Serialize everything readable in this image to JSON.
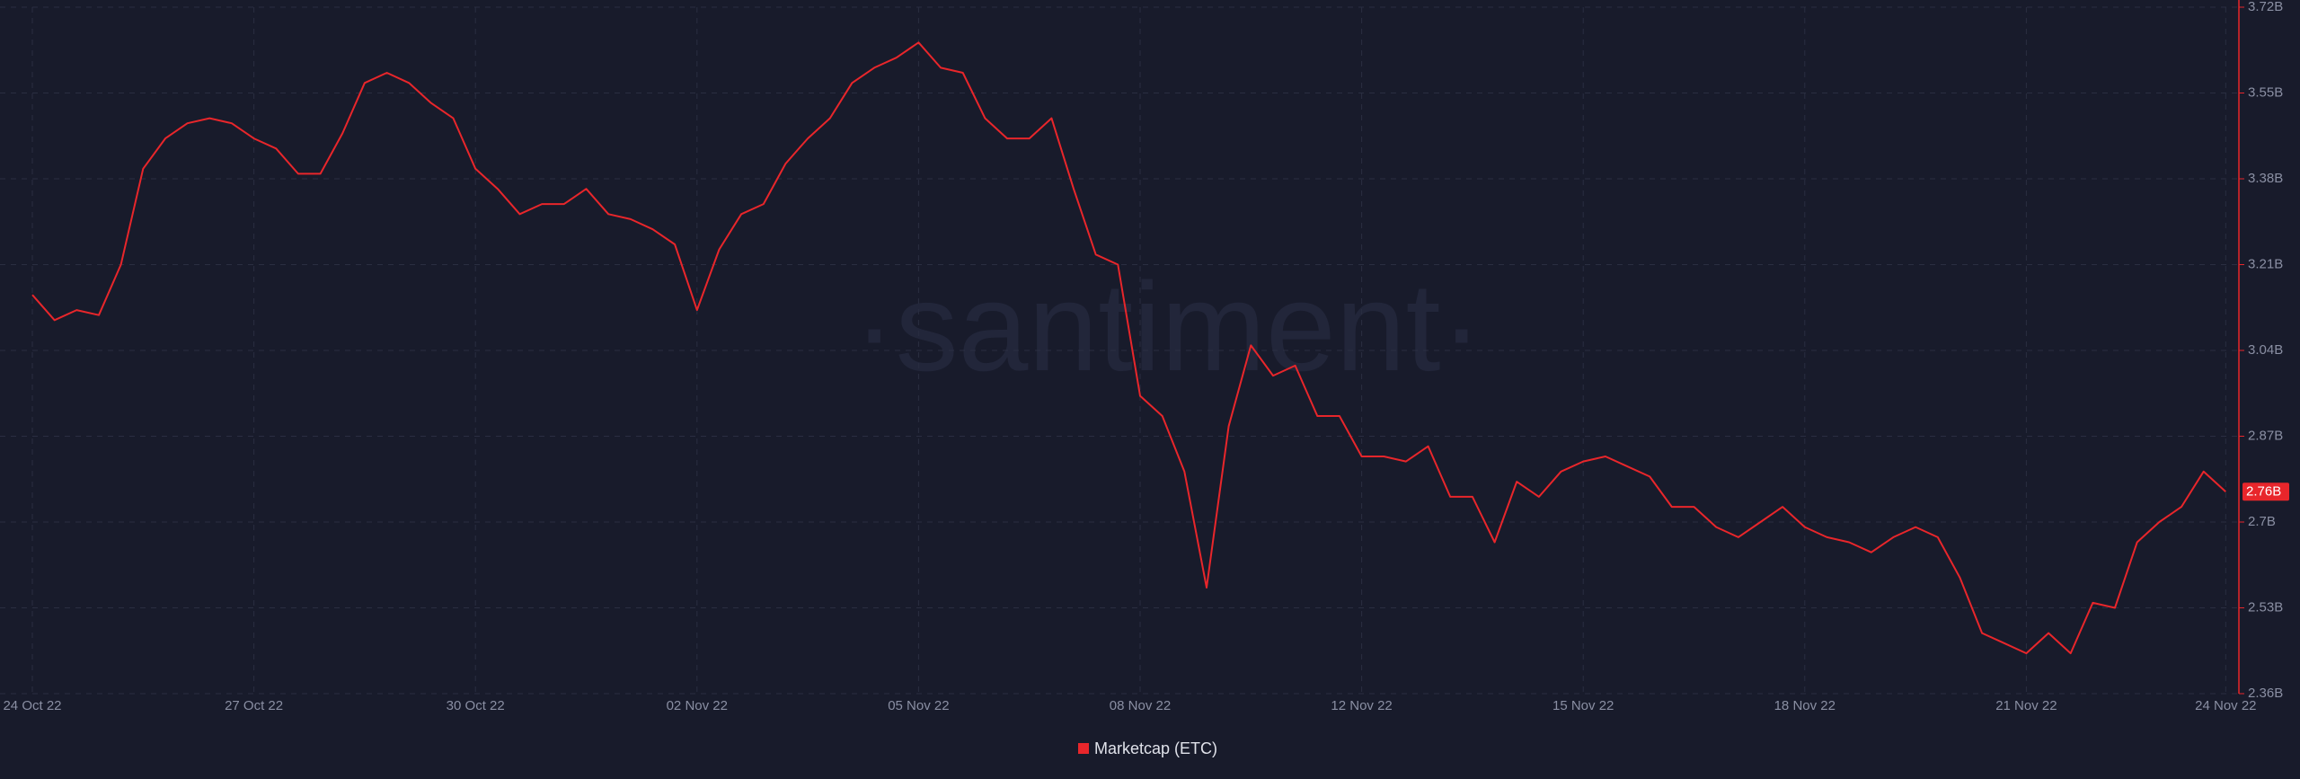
{
  "chart_data": {
    "type": "line",
    "watermark": "·santiment·",
    "categories": [
      "24 Oct 22",
      null,
      null,
      null,
      null,
      null,
      null,
      null,
      null,
      null,
      "27 Oct 22",
      null,
      null,
      null,
      null,
      null,
      null,
      null,
      null,
      null,
      "30 Oct 22",
      null,
      null,
      null,
      null,
      null,
      null,
      null,
      null,
      null,
      "02 Nov 22",
      null,
      null,
      null,
      null,
      null,
      null,
      null,
      null,
      null,
      "05 Nov 22",
      null,
      null,
      null,
      null,
      null,
      null,
      null,
      null,
      null,
      "08 Nov 22",
      null,
      null,
      null,
      null,
      null,
      null,
      null,
      null,
      null,
      "12 Nov 22",
      null,
      null,
      null,
      null,
      null,
      null,
      null,
      null,
      null,
      "15 Nov 22",
      null,
      null,
      null,
      null,
      null,
      null,
      null,
      null,
      null,
      "18 Nov 22",
      null,
      null,
      null,
      null,
      null,
      null,
      null,
      null,
      null,
      "21 Nov 22",
      null,
      null,
      null,
      null,
      null,
      null,
      null,
      null,
      "24 Nov 22"
    ],
    "series": [
      {
        "name": "Marketcap (ETC)",
        "color": "#e8262b",
        "values": [
          3.15,
          3.1,
          3.12,
          3.11,
          3.21,
          3.4,
          3.46,
          3.49,
          3.5,
          3.49,
          3.46,
          3.44,
          3.39,
          3.39,
          3.47,
          3.57,
          3.59,
          3.57,
          3.53,
          3.5,
          3.4,
          3.36,
          3.31,
          3.33,
          3.33,
          3.36,
          3.31,
          3.3,
          3.28,
          3.25,
          3.12,
          3.24,
          3.31,
          3.33,
          3.41,
          3.46,
          3.5,
          3.57,
          3.6,
          3.62,
          3.65,
          3.6,
          3.59,
          3.5,
          3.46,
          3.46,
          3.5,
          3.36,
          3.23,
          3.21,
          2.95,
          2.91,
          2.8,
          2.57,
          2.89,
          3.05,
          2.99,
          3.01,
          2.91,
          2.91,
          2.83,
          2.83,
          2.82,
          2.85,
          2.75,
          2.75,
          2.66,
          2.78,
          2.75,
          2.8,
          2.82,
          2.83,
          2.81,
          2.79,
          2.73,
          2.73,
          2.69,
          2.67,
          2.7,
          2.73,
          2.69,
          2.67,
          2.66,
          2.64,
          2.67,
          2.69,
          2.67,
          2.59,
          2.48,
          2.46,
          2.44,
          2.48,
          2.44,
          2.54,
          2.53,
          2.66,
          2.7,
          2.73,
          2.8,
          2.76
        ]
      }
    ],
    "current_value": {
      "value": 2.76,
      "label": "2.76B"
    },
    "ylim": [
      2.36,
      3.72
    ],
    "yticks": [
      {
        "value": 2.36,
        "label": "2.36B"
      },
      {
        "value": 2.53,
        "label": "2.53B"
      },
      {
        "value": 2.7,
        "label": "2.7B"
      },
      {
        "value": 2.87,
        "label": "2.87B"
      },
      {
        "value": 3.04,
        "label": "3.04B"
      },
      {
        "value": 3.21,
        "label": "3.21B"
      },
      {
        "value": 3.38,
        "label": "3.38B"
      },
      {
        "value": 3.55,
        "label": "3.55B"
      },
      {
        "value": 3.72,
        "label": "3.72B"
      }
    ],
    "grid": true
  }
}
